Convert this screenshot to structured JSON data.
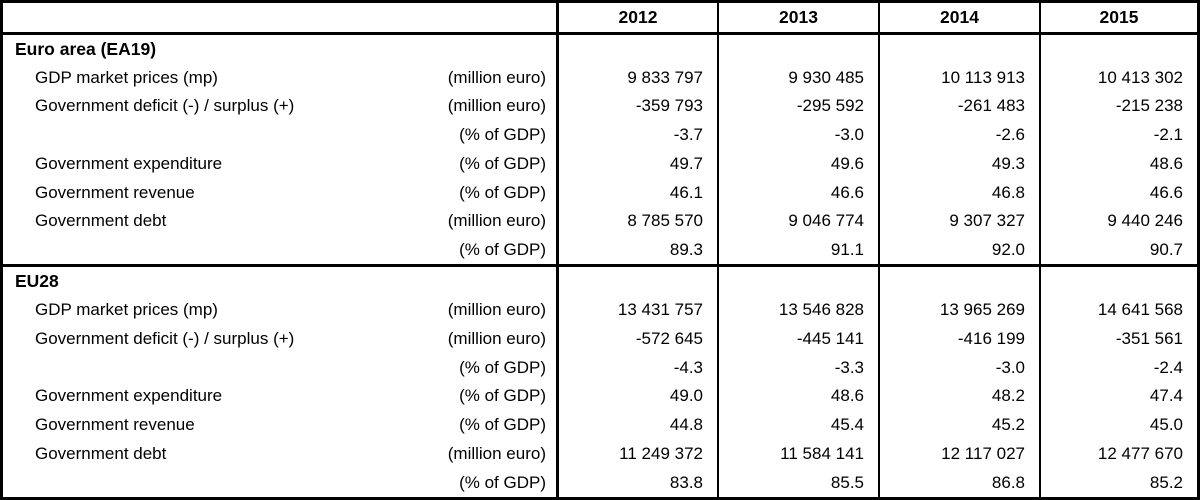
{
  "chart_data": {
    "type": "table",
    "corner_label": "",
    "col_headers": [
      "2012",
      "2013",
      "2014",
      "2015"
    ],
    "sections": [
      {
        "title": "Euro area (EA19)",
        "rows": [
          {
            "label": "GDP market prices (mp)",
            "unit": "(million euro)",
            "values": [
              "9 833 797",
              "9 930 485",
              "10 113 913",
              "10 413 302"
            ]
          },
          {
            "label": "Government deficit (-) / surplus (+)",
            "unit": "(million euro)",
            "values": [
              "-359 793",
              "-295 592",
              "-261 483",
              "-215 238"
            ]
          },
          {
            "label": "",
            "unit": "(% of GDP)",
            "values": [
              "-3.7",
              "-3.0",
              "-2.6",
              "-2.1"
            ]
          },
          {
            "label": "Government expenditure",
            "unit": "(% of GDP)",
            "values": [
              "49.7",
              "49.6",
              "49.3",
              "48.6"
            ]
          },
          {
            "label": "Government revenue",
            "unit": "(% of GDP)",
            "values": [
              "46.1",
              "46.6",
              "46.8",
              "46.6"
            ]
          },
          {
            "label": "Government debt",
            "unit": "(million euro)",
            "values": [
              "8 785 570",
              "9 046 774",
              "9 307 327",
              "9 440 246"
            ]
          },
          {
            "label": "",
            "unit": "(% of GDP)",
            "values": [
              "89.3",
              "91.1",
              "92.0",
              "90.7"
            ]
          }
        ]
      },
      {
        "title": "EU28",
        "rows": [
          {
            "label": "GDP market prices (mp)",
            "unit": "(million euro)",
            "values": [
              "13 431 757",
              "13 546 828",
              "13 965 269",
              "14 641 568"
            ]
          },
          {
            "label": "Government deficit (-) / surplus (+)",
            "unit": "(million euro)",
            "values": [
              "-572 645",
              "-445 141",
              "-416 199",
              "-351 561"
            ]
          },
          {
            "label": "",
            "unit": "(% of GDP)",
            "values": [
              "-4.3",
              "-3.3",
              "-3.0",
              "-2.4"
            ]
          },
          {
            "label": "Government expenditure",
            "unit": "(% of GDP)",
            "values": [
              "49.0",
              "48.6",
              "48.2",
              "47.4"
            ]
          },
          {
            "label": "Government revenue",
            "unit": "(% of GDP)",
            "values": [
              "44.8",
              "45.4",
              "45.2",
              "45.0"
            ]
          },
          {
            "label": "Government debt",
            "unit": "(million euro)",
            "values": [
              "11 249 372",
              "11 584 141",
              "12 117 027",
              "12 477 670"
            ]
          },
          {
            "label": "",
            "unit": "(% of GDP)",
            "values": [
              "83.8",
              "85.5",
              "86.8",
              "85.2"
            ]
          }
        ]
      }
    ],
    "colors": {
      "text": "#000000",
      "background": "#ffffff",
      "border": "#000000"
    }
  }
}
